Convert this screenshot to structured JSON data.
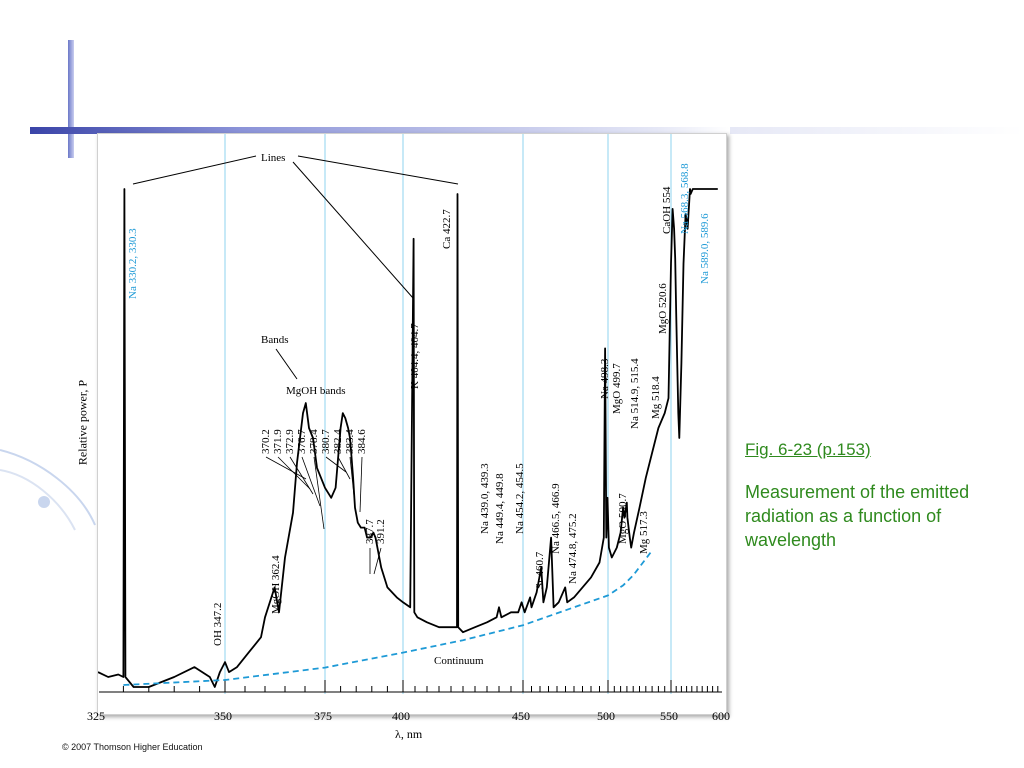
{
  "caption": {
    "title": "Fig. 6-23 (p.153)",
    "body": "Measurement of the emitted radiation as a function of wavelength"
  },
  "copyright": "© 2007 Thomson Higher Education",
  "colors": {
    "accent_green": "#2f8a1e",
    "blue_lines": "#5bc0eb",
    "continuum": "#1e9ad6",
    "slide_bar": "#3a44a8"
  },
  "chart_data": {
    "type": "line",
    "xlabel": "λ, nm",
    "ylabel": "Relative power, P",
    "xlim": [
      325,
      600
    ],
    "xticks": [
      325,
      350,
      375,
      400,
      450,
      500,
      550,
      600
    ],
    "grid": false,
    "vertical_ref_lines": [
      350,
      375,
      400,
      450,
      500,
      550
    ],
    "series": [
      {
        "values": [
          [
            325,
            0.03
          ],
          [
            327,
            0.02
          ],
          [
            329,
            0.025
          ],
          [
            330,
            0.02
          ],
          [
            330.2,
            1.0
          ],
          [
            330.4,
            0.02
          ],
          [
            332,
            0.0
          ],
          [
            335,
            0.0
          ],
          [
            340,
            0.02
          ],
          [
            344,
            0.04
          ],
          [
            347,
            0.02
          ],
          [
            348,
            0.0
          ],
          [
            349,
            0.03
          ],
          [
            350,
            0.05
          ],
          [
            351,
            0.03
          ],
          [
            353,
            0.04
          ],
          [
            356,
            0.07
          ],
          [
            359,
            0.1
          ],
          [
            360,
            0.14
          ],
          [
            362.4,
            0.2
          ],
          [
            363.5,
            0.15
          ],
          [
            365,
            0.26
          ],
          [
            367,
            0.35
          ],
          [
            368,
            0.45
          ],
          [
            369.5,
            0.55
          ],
          [
            370.2,
            0.57
          ],
          [
            371,
            0.52
          ],
          [
            372,
            0.5
          ],
          [
            373,
            0.44
          ],
          [
            374,
            0.42
          ],
          [
            375,
            0.4
          ],
          [
            376,
            0.39
          ],
          [
            377,
            0.38
          ],
          [
            378.4,
            0.4
          ],
          [
            380,
            0.52
          ],
          [
            380.7,
            0.55
          ],
          [
            381.5,
            0.54
          ],
          [
            382.4,
            0.52
          ],
          [
            383,
            0.5
          ],
          [
            383.4,
            0.47
          ],
          [
            384,
            0.42
          ],
          [
            384.6,
            0.36
          ],
          [
            385.5,
            0.33
          ],
          [
            386.5,
            0.32
          ],
          [
            387.7,
            0.32
          ],
          [
            388.5,
            0.3
          ],
          [
            389.5,
            0.3
          ],
          [
            390.5,
            0.31
          ],
          [
            391.2,
            0.3
          ],
          [
            393,
            0.24
          ],
          [
            395,
            0.2
          ],
          [
            398,
            0.18
          ],
          [
            400,
            0.17
          ],
          [
            403,
            0.16
          ],
          [
            404.4,
            0.9
          ],
          [
            404.7,
            0.15
          ],
          [
            406,
            0.14
          ],
          [
            410,
            0.13
          ],
          [
            415,
            0.12
          ],
          [
            420,
            0.12
          ],
          [
            422.5,
            0.12
          ],
          [
            422.7,
            0.99
          ],
          [
            423,
            0.12
          ],
          [
            425,
            0.11
          ],
          [
            430,
            0.12
          ],
          [
            435,
            0.13
          ],
          [
            439.0,
            0.14
          ],
          [
            440,
            0.16
          ],
          [
            441,
            0.14
          ],
          [
            445,
            0.15
          ],
          [
            448,
            0.15
          ],
          [
            449.4,
            0.17
          ],
          [
            451,
            0.15
          ],
          [
            454.2,
            0.18
          ],
          [
            455,
            0.16
          ],
          [
            458,
            0.19
          ],
          [
            460.7,
            0.24
          ],
          [
            462,
            0.17
          ],
          [
            464,
            0.2
          ],
          [
            466.5,
            0.3
          ],
          [
            468,
            0.16
          ],
          [
            471,
            0.17
          ],
          [
            474.8,
            0.2
          ],
          [
            476,
            0.17
          ],
          [
            480,
            0.18
          ],
          [
            485,
            0.2
          ],
          [
            490,
            0.22
          ],
          [
            495,
            0.25
          ],
          [
            497.5,
            0.3
          ],
          [
            498.3,
            0.68
          ],
          [
            499.0,
            0.3
          ],
          [
            499.7,
            0.38
          ],
          [
            500.7,
            0.28
          ],
          [
            503,
            0.26
          ],
          [
            507,
            0.28
          ],
          [
            510,
            0.31
          ],
          [
            512,
            0.36
          ],
          [
            513,
            0.34
          ],
          [
            514.9,
            0.37
          ],
          [
            515.4,
            0.34
          ],
          [
            517.3,
            0.3
          ],
          [
            518.4,
            0.28
          ],
          [
            520.6,
            0.31
          ],
          [
            525,
            0.36
          ],
          [
            530,
            0.42
          ],
          [
            535,
            0.47
          ],
          [
            540,
            0.52
          ],
          [
            545,
            0.55
          ],
          [
            548,
            0.58
          ],
          [
            550,
            0.85
          ],
          [
            551.5,
            0.96
          ],
          [
            553,
            0.92
          ],
          [
            554,
            0.86
          ],
          [
            555,
            0.75
          ],
          [
            557,
            0.55
          ],
          [
            558,
            0.5
          ],
          [
            560,
            0.65
          ],
          [
            562,
            0.85
          ],
          [
            564,
            0.95
          ],
          [
            566,
            0.92
          ],
          [
            568.3,
            1.0
          ],
          [
            568.8,
            0.99
          ],
          [
            571,
            1.0
          ],
          [
            574,
            1.0
          ],
          [
            580,
            1.0
          ],
          [
            589.0,
            1.0
          ],
          [
            589.6,
            1.0
          ],
          [
            595,
            1.0
          ]
        ]
      },
      {
        "name": "Continuum",
        "values": [
          [
            330,
            0.0
          ],
          [
            350,
            0.01
          ],
          [
            375,
            0.035
          ],
          [
            400,
            0.065
          ],
          [
            425,
            0.09
          ],
          [
            450,
            0.12
          ],
          [
            475,
            0.15
          ],
          [
            500,
            0.18
          ],
          [
            512,
            0.2
          ],
          [
            520,
            0.22
          ],
          [
            535,
            0.27
          ]
        ]
      }
    ],
    "annotations": [
      {
        "text": "Lines"
      },
      {
        "text": "Bands"
      },
      {
        "text": "MgOH bands"
      },
      {
        "text": "Continuum"
      },
      {
        "text": "Na 330.2, 330.3",
        "x": 330.2,
        "color": "#1e9ad6"
      },
      {
        "text": "OH 347.2",
        "x": 347.2
      },
      {
        "text": "MgOH 362.4",
        "x": 362.4
      },
      {
        "text": "370.2",
        "x": 370.2
      },
      {
        "text": "371.9",
        "x": 371.9
      },
      {
        "text": "372.9",
        "x": 372.9
      },
      {
        "text": "376.7",
        "x": 376.7
      },
      {
        "text": "378.4",
        "x": 378.4
      },
      {
        "text": "380.7",
        "x": 380.7
      },
      {
        "text": "382.4",
        "x": 382.4
      },
      {
        "text": "383.4",
        "x": 383.4
      },
      {
        "text": "384.6",
        "x": 384.6
      },
      {
        "text": "387.7",
        "x": 387.7
      },
      {
        "text": "391.2",
        "x": 391.2
      },
      {
        "text": "K 404.4, 404.7",
        "x": 404.4
      },
      {
        "text": "Ca 422.7",
        "x": 422.7
      },
      {
        "text": "Na 439.0, 439.3",
        "x": 439.0
      },
      {
        "text": "Na 449.4, 449.8",
        "x": 449.4
      },
      {
        "text": "Na 454.2, 454.5",
        "x": 454.2
      },
      {
        "text": "Sr 460.7",
        "x": 460.7
      },
      {
        "text": "Na 466.5, 466.9",
        "x": 466.5
      },
      {
        "text": "Na 474.8, 475.2",
        "x": 474.8
      },
      {
        "text": "Na 498.3",
        "x": 498.3
      },
      {
        "text": "MgO 499.7",
        "x": 499.7
      },
      {
        "text": "MgO 500.7",
        "x": 500.7
      },
      {
        "text": "Na 514.9, 515.4",
        "x": 514.9
      },
      {
        "text": "Mg 517.3",
        "x": 517.3
      },
      {
        "text": "Mg 518.4",
        "x": 518.4
      },
      {
        "text": "MgO 520.6",
        "x": 520.6
      },
      {
        "text": "CaOH 554",
        "x": 554
      },
      {
        "text": "Na 568.3, 568.8",
        "x": 568.3,
        "color": "#1e9ad6"
      },
      {
        "text": "Na 589.0, 589.6",
        "x": 589.0,
        "color": "#1e9ad6"
      }
    ]
  }
}
